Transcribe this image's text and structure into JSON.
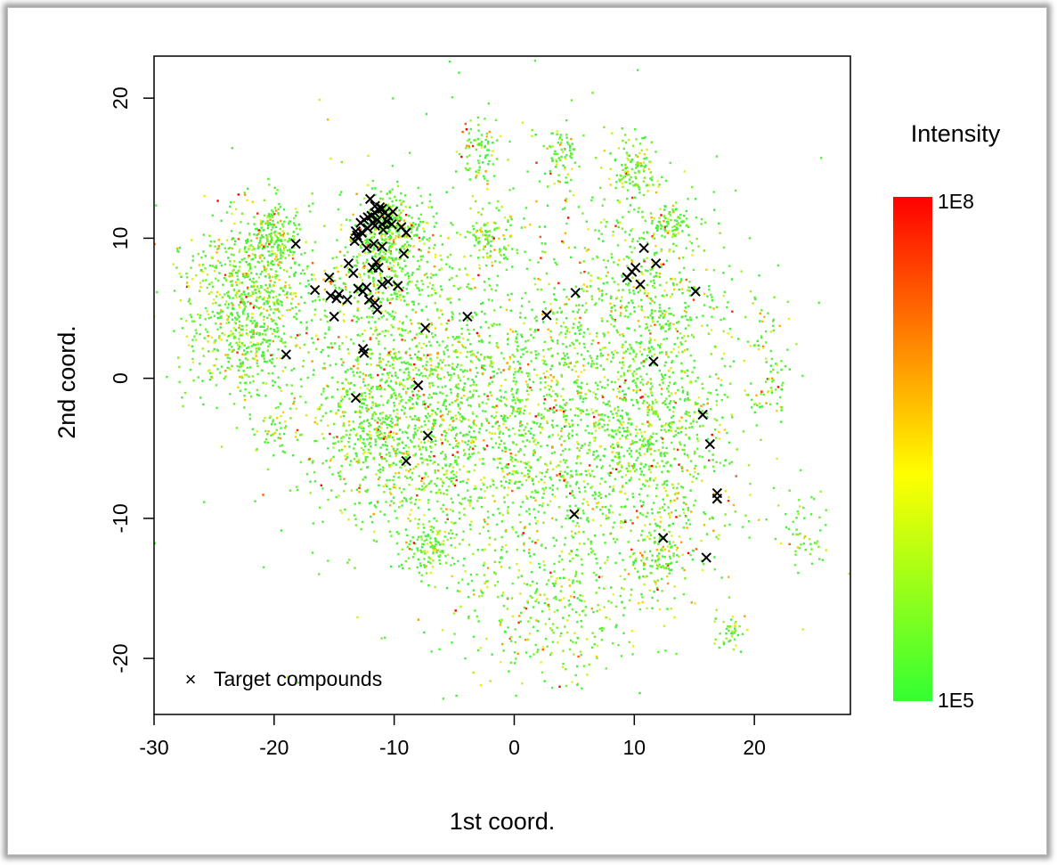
{
  "chart_data": {
    "type": "scatter",
    "title": "",
    "xlabel": "1st coord.",
    "ylabel": "2nd coord.",
    "xlim": [
      -30,
      28
    ],
    "ylim": [
      -24,
      23
    ],
    "xticks": [
      -30,
      -20,
      -10,
      0,
      10,
      20
    ],
    "yticks": [
      -20,
      -10,
      0,
      10,
      20
    ],
    "xtick_labels": [
      "-30",
      "-20",
      "-10",
      "0",
      "10",
      "20"
    ],
    "ytick_labels": [
      "-20",
      "-10",
      "0",
      "10",
      "20"
    ],
    "grid": false,
    "legend": {
      "placement": "bottom-left",
      "label": "Target compounds",
      "marker": "×"
    },
    "colorbar": {
      "title": "Intensity",
      "max_label": "1E8",
      "min_label": "1E5",
      "max_value": 100000000,
      "min_value": 100000,
      "scale": "log",
      "colors": [
        "#ff0000",
        "#ffff00",
        "#33ff33"
      ]
    },
    "background_clusters": [
      {
        "x": -22,
        "y": 5,
        "sx": 2.8,
        "sy": 3.2,
        "n": 900
      },
      {
        "x": -20,
        "y": 10,
        "sx": 1.2,
        "sy": 1.2,
        "n": 180
      },
      {
        "x": -11,
        "y": 8,
        "sx": 2.0,
        "sy": 2.5,
        "n": 420
      },
      {
        "x": -10,
        "y": 11,
        "sx": 1.5,
        "sy": 1.0,
        "n": 220
      },
      {
        "x": -11,
        "y": -3,
        "sx": 3.0,
        "sy": 3.5,
        "n": 750
      },
      {
        "x": -4,
        "y": -3,
        "sx": 4.5,
        "sy": 5.0,
        "n": 750
      },
      {
        "x": 7,
        "y": -4,
        "sx": 5.0,
        "sy": 5.5,
        "n": 900
      },
      {
        "x": 12,
        "y": -4,
        "sx": 3.0,
        "sy": 5.0,
        "n": 500
      },
      {
        "x": 11,
        "y": 7,
        "sx": 3.0,
        "sy": 3.0,
        "n": 300
      },
      {
        "x": 10,
        "y": 15,
        "sx": 1.0,
        "sy": 1.0,
        "n": 120
      },
      {
        "x": 13,
        "y": 11,
        "sx": 0.8,
        "sy": 0.6,
        "n": 80
      },
      {
        "x": -3,
        "y": 16,
        "sx": 0.8,
        "sy": 1.2,
        "n": 80
      },
      {
        "x": 4,
        "y": 16,
        "sx": 0.6,
        "sy": 1.0,
        "n": 70
      },
      {
        "x": -2,
        "y": 10,
        "sx": 1.0,
        "sy": 0.8,
        "n": 90
      },
      {
        "x": -7,
        "y": -12,
        "sx": 1.0,
        "sy": 1.0,
        "n": 120
      },
      {
        "x": 12,
        "y": -13,
        "sx": 1.0,
        "sy": 1.5,
        "n": 100
      },
      {
        "x": 18,
        "y": -18,
        "sx": 0.6,
        "sy": 0.8,
        "n": 40
      },
      {
        "x": 21,
        "y": 1,
        "sx": 1.0,
        "sy": 2.5,
        "n": 90
      },
      {
        "x": 24,
        "y": -11,
        "sx": 0.8,
        "sy": 1.2,
        "n": 50
      },
      {
        "x": -20,
        "y": -4,
        "sx": 0.8,
        "sy": 0.8,
        "n": 40
      },
      {
        "x": 0,
        "y": 0,
        "sx": 9.0,
        "sy": 9.0,
        "n": 1000
      },
      {
        "x": 3,
        "y": -17,
        "sx": 4.0,
        "sy": 2.5,
        "n": 250
      }
    ],
    "target_compounds": [
      [
        -18.2,
        9.6
      ],
      [
        -16.6,
        6.3
      ],
      [
        -15.4,
        7.2
      ],
      [
        -15.3,
        5.9
      ],
      [
        -14.8,
        5.7
      ],
      [
        -14.6,
        6.0
      ],
      [
        -15.0,
        4.4
      ],
      [
        -13.9,
        5.6
      ],
      [
        -13.8,
        8.2
      ],
      [
        -13.4,
        7.5
      ],
      [
        -13.0,
        6.4
      ],
      [
        -12.6,
        6.2
      ],
      [
        -12.3,
        6.5
      ],
      [
        -12.1,
        5.6
      ],
      [
        -11.6,
        5.4
      ],
      [
        -11.4,
        4.9
      ],
      [
        -11.8,
        7.9
      ],
      [
        -11.5,
        8.3
      ],
      [
        -11.3,
        7.9
      ],
      [
        -11.0,
        6.7
      ],
      [
        -10.5,
        6.9
      ],
      [
        -9.7,
        6.6
      ],
      [
        -12.3,
        9.3
      ],
      [
        -11.7,
        9.6
      ],
      [
        -11.0,
        9.4
      ],
      [
        -9.2,
        8.9
      ],
      [
        -13.3,
        9.8
      ],
      [
        -13.1,
        10.2
      ],
      [
        -13.0,
        10.0
      ],
      [
        -12.7,
        10.4
      ],
      [
        -13.2,
        10.5
      ],
      [
        -12.8,
        11.1
      ],
      [
        -12.5,
        11.3
      ],
      [
        -12.2,
        11.5
      ],
      [
        -11.9,
        11.6
      ],
      [
        -11.6,
        11.8
      ],
      [
        -11.3,
        12.0
      ],
      [
        -11.0,
        12.1
      ],
      [
        -10.8,
        11.8
      ],
      [
        -10.5,
        11.6
      ],
      [
        -10.1,
        11.9
      ],
      [
        -11.8,
        11.1
      ],
      [
        -11.4,
        11.3
      ],
      [
        -11.0,
        11.0
      ],
      [
        -10.6,
        11.2
      ],
      [
        -12.0,
        12.8
      ],
      [
        -11.6,
        12.3
      ],
      [
        -11.2,
        12.2
      ],
      [
        -12.2,
        10.7
      ],
      [
        -11.6,
        10.9
      ],
      [
        -10.9,
        10.6
      ],
      [
        -10.2,
        11.0
      ],
      [
        -9.4,
        10.8
      ],
      [
        -9.0,
        10.4
      ],
      [
        -19.0,
        1.7
      ],
      [
        -12.6,
        2.1
      ],
      [
        -12.5,
        1.8
      ],
      [
        -13.2,
        -1.4
      ],
      [
        -8.0,
        -0.5
      ],
      [
        -7.4,
        3.6
      ],
      [
        -7.2,
        -4.1
      ],
      [
        -9.0,
        -5.9
      ],
      [
        -3.9,
        4.4
      ],
      [
        2.7,
        4.5
      ],
      [
        5.1,
        6.1
      ],
      [
        5.0,
        -9.7
      ],
      [
        9.4,
        7.2
      ],
      [
        9.8,
        7.6
      ],
      [
        10.1,
        7.9
      ],
      [
        10.5,
        6.7
      ],
      [
        10.8,
        9.3
      ],
      [
        11.8,
        8.2
      ],
      [
        15.1,
        6.2
      ],
      [
        11.6,
        1.2
      ],
      [
        15.7,
        -2.6
      ],
      [
        16.3,
        -4.7
      ],
      [
        16.9,
        -8.2
      ],
      [
        16.9,
        -8.6
      ],
      [
        12.4,
        -11.4
      ],
      [
        16.0,
        -12.8
      ]
    ]
  }
}
